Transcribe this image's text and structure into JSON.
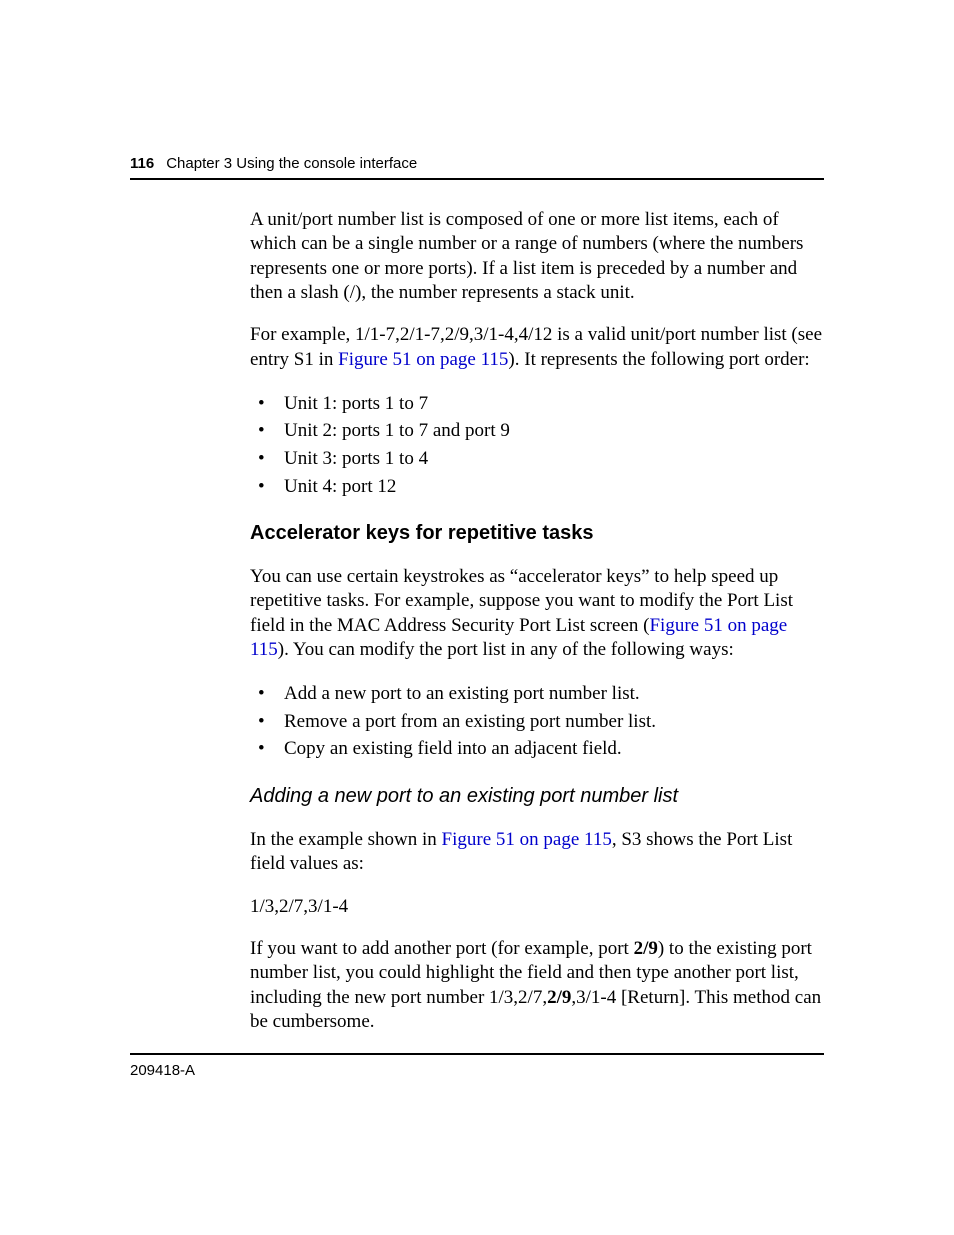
{
  "colors": {
    "link": "#0000cc",
    "text": "#000000",
    "rule": "#000000",
    "background": "#ffffff"
  },
  "typography": {
    "body_family": "Times New Roman",
    "header_family": "Arial",
    "body_size_pt": 14,
    "header_size_pt": 11,
    "h_bold_size_pt": 15,
    "h_italic_size_pt": 15
  },
  "header": {
    "page_number": "116",
    "chapter": "Chapter 3  Using the console interface"
  },
  "body": {
    "p1": "A unit/port number list is composed of one or more list items, each of which can be a single number or a range of numbers (where the numbers represents one or more ports). If a list item is preceded by a number and then a slash (/), the number represents a stack unit.",
    "p2a": "For example, 1/1-7,2/1-7,2/9,3/1-4,4/12 is a valid unit/port number list (see entry S1 in ",
    "p2_link": "Figure 51 on page 115",
    "p2b": "). It represents the following port order:",
    "list1": [
      "Unit 1: ports 1 to 7",
      "Unit 2: ports 1 to 7 and port 9",
      "Unit 3: ports 1 to 4",
      "Unit 4: port 12"
    ],
    "h1": "Accelerator keys for repetitive tasks",
    "p3a": "You can use certain keystrokes as “accelerator keys” to help speed up repetitive tasks. For example, suppose you want to modify the Port List field in the MAC Address Security Port List screen (",
    "p3_link": "Figure 51 on page 115",
    "p3b": "). You can modify the port list in any of the following ways:",
    "list2": [
      "Add a new port to an existing port number list.",
      "Remove a port from an existing port number list.",
      "Copy an existing field into an adjacent field."
    ],
    "h2": "Adding a new port to an existing port number list",
    "p4a": "In the example shown in ",
    "p4_link": "Figure 51 on page 115",
    "p4b": ", S3 shows the Port List field values as:",
    "p5": "1/3,2/7,3/1-4",
    "p6a": "If you want to add another port (for example, port ",
    "p6_b1": "2/9",
    "p6b": ") to the existing port number list, you could highlight the field and then type another port list, including the new port number 1/3,2/7,",
    "p6_b2": "2/9",
    "p6c": ",3/1-4 [Return]. This method can be cumbersome."
  },
  "footer": {
    "docnum": "209418-A"
  }
}
